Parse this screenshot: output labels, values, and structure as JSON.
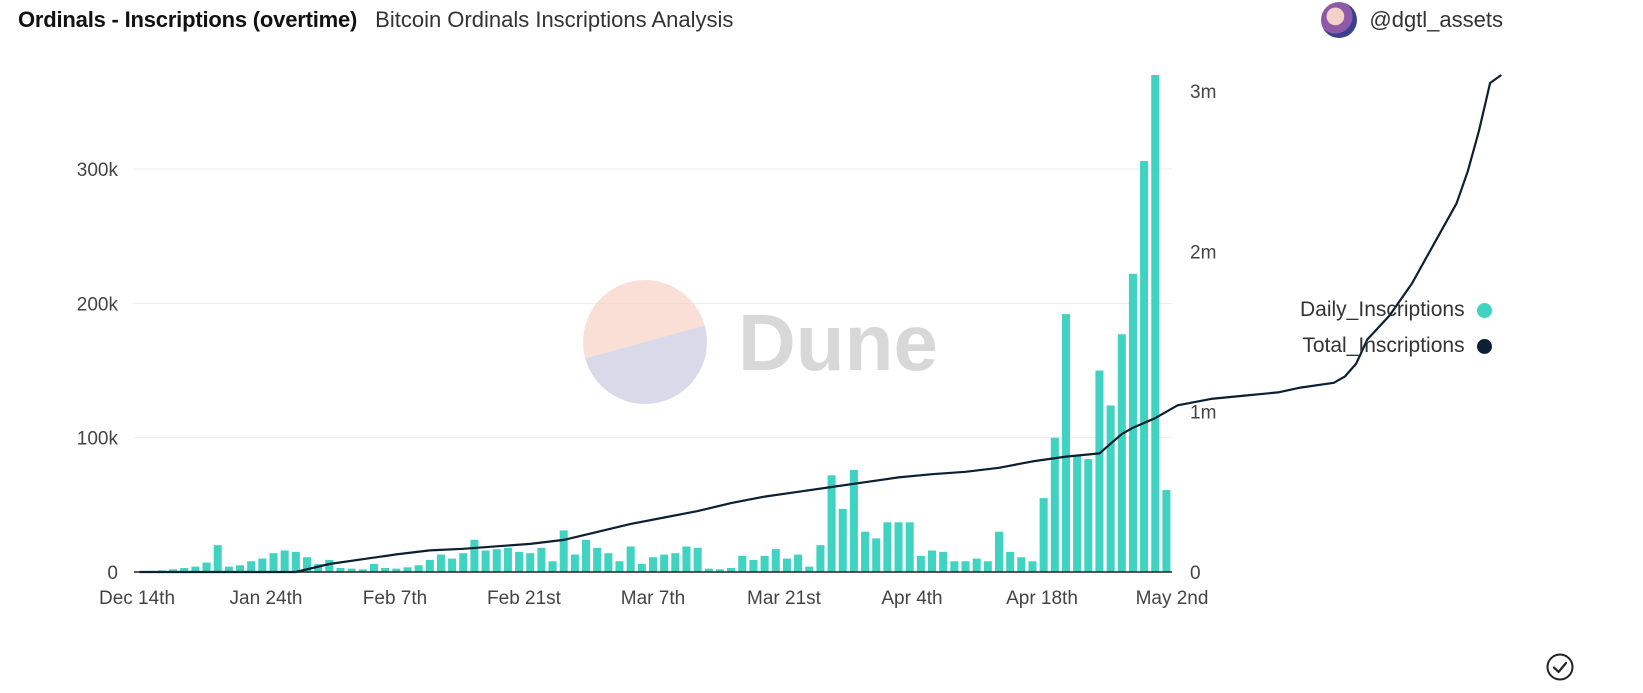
{
  "header": {
    "title": "Ordinals - Inscriptions (overtime)",
    "subtitle": "Bitcoin Ordinals Inscriptions Analysis",
    "author": "@dgtl_assets",
    "avatar_icon": "avatar-icon"
  },
  "watermark": {
    "text": "Dune"
  },
  "colors": {
    "bar": "#40d3c1",
    "line": "#0d1f33",
    "grid": "#ececec"
  },
  "legend": {
    "placement": "right",
    "items": [
      "Daily_Inscriptions",
      "Total_Inscriptions"
    ]
  },
  "status_icon": "check-circle-icon",
  "chart_data": {
    "type": "bar",
    "x": {
      "labels": [
        "Dec 14th",
        "Jan 24th",
        "Feb 7th",
        "Feb 21st",
        "Mar 7th",
        "Mar 21st",
        "Apr 4th",
        "Apr 18th",
        "May 2nd"
      ]
    },
    "y_left": {
      "range": [
        0,
        370000
      ],
      "ticks": [
        0,
        100000,
        200000,
        300000
      ],
      "tick_labels": [
        "0",
        "100k",
        "200k",
        "300k"
      ]
    },
    "y_right": {
      "range": [
        0,
        3100000
      ],
      "ticks": [
        0,
        1000000,
        2000000,
        3000000
      ],
      "tick_labels": [
        "0",
        "1m",
        "2m",
        "3m"
      ]
    },
    "grid": true,
    "series": [
      {
        "name": "Daily_Inscriptions",
        "type": "bar",
        "axis": "left",
        "values": [
          300,
          800,
          1200,
          2000,
          3000,
          4000,
          7000,
          20000,
          4000,
          5000,
          8000,
          10000,
          14000,
          16000,
          15000,
          11000,
          6000,
          9000,
          3000,
          2500,
          2000,
          6000,
          3000,
          2500,
          3500,
          5000,
          9000,
          13000,
          10000,
          14000,
          24000,
          16000,
          17000,
          18000,
          15000,
          14000,
          18000,
          8000,
          31000,
          13000,
          24000,
          18000,
          14000,
          8000,
          19000,
          6000,
          11000,
          13000,
          14000,
          19000,
          18000,
          2500,
          2000,
          3000,
          12000,
          9000,
          12000,
          17000,
          10000,
          13000,
          4000,
          20000,
          72000,
          47000,
          76000,
          30000,
          25000,
          37000,
          37000,
          37000,
          12000,
          16000,
          15000,
          8000,
          8000,
          10000,
          8000,
          30000,
          15000,
          11000,
          8000,
          55000,
          100000,
          192000,
          87000,
          84000,
          150000,
          124000,
          177000,
          222000,
          306000,
          370000,
          61000
        ]
      },
      {
        "name": "Total_Inscriptions",
        "type": "line",
        "axis": "right",
        "points": [
          [
            0,
            0
          ],
          [
            5,
            0
          ],
          [
            10,
            0
          ],
          [
            14,
            0
          ],
          [
            17,
            50000
          ],
          [
            20,
            80000
          ],
          [
            23,
            110000
          ],
          [
            26,
            135000
          ],
          [
            29,
            145000
          ],
          [
            32,
            160000
          ],
          [
            35,
            175000
          ],
          [
            38,
            200000
          ],
          [
            41,
            250000
          ],
          [
            44,
            300000
          ],
          [
            47,
            340000
          ],
          [
            50,
            380000
          ],
          [
            53,
            430000
          ],
          [
            56,
            470000
          ],
          [
            59,
            500000
          ],
          [
            62,
            530000
          ],
          [
            65,
            560000
          ],
          [
            68,
            590000
          ],
          [
            71,
            610000
          ],
          [
            74,
            625000
          ],
          [
            77,
            650000
          ],
          [
            80,
            690000
          ],
          [
            83,
            720000
          ],
          [
            86,
            740000
          ],
          [
            87,
            800000
          ],
          [
            88,
            860000
          ],
          [
            89,
            900000
          ],
          [
            91,
            960000
          ],
          [
            93,
            1040000
          ],
          [
            96,
            1080000
          ],
          [
            99,
            1100000
          ],
          [
            102,
            1120000
          ],
          [
            104,
            1150000
          ],
          [
            107,
            1180000
          ],
          [
            108,
            1220000
          ],
          [
            109,
            1300000
          ],
          [
            110,
            1450000
          ],
          [
            112,
            1600000
          ],
          [
            114,
            1800000
          ],
          [
            116,
            2050000
          ],
          [
            118,
            2300000
          ],
          [
            119,
            2500000
          ],
          [
            120,
            2750000
          ],
          [
            121,
            3050000
          ],
          [
            122,
            3100000
          ]
        ]
      }
    ]
  }
}
